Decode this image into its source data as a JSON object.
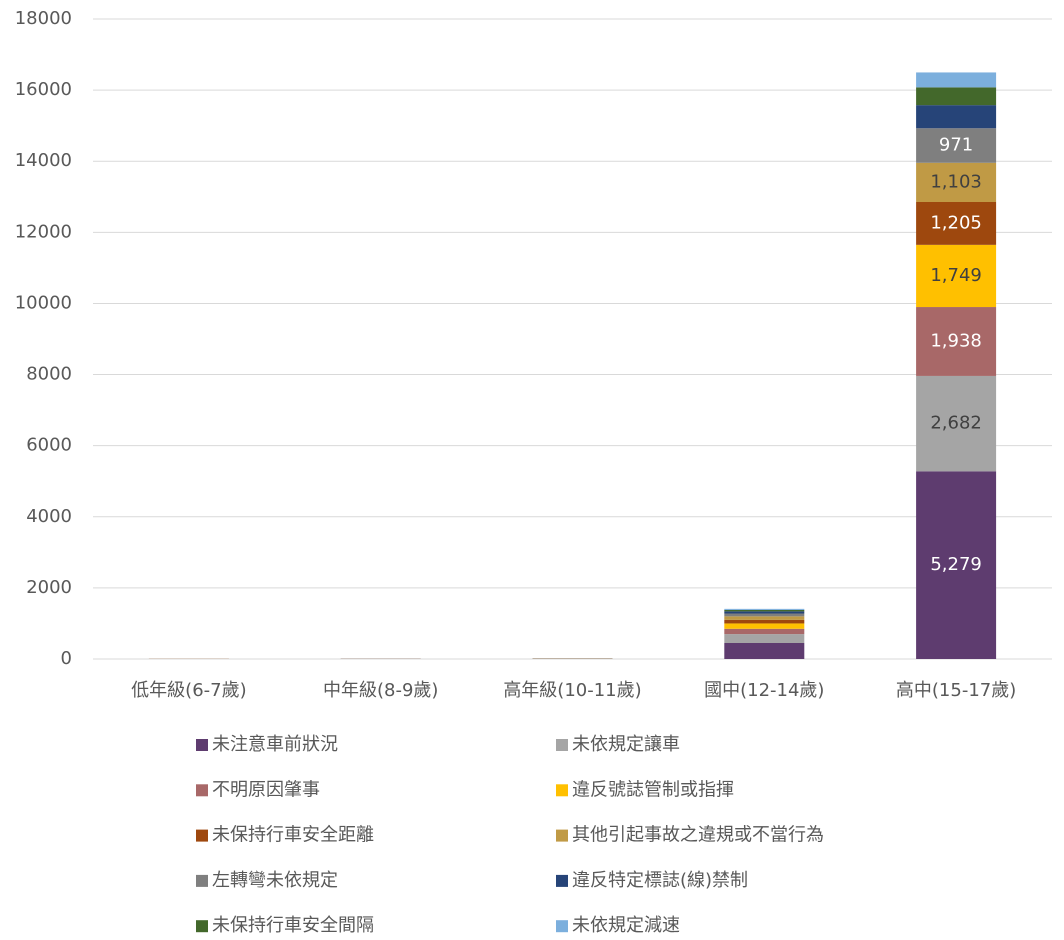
{
  "chart_data": {
    "type": "stacked_bar",
    "categories": [
      "低年級(6-7歲)",
      "中年級(8-9歲)",
      "高年級(10-11歲)",
      "國中(12-14歲)",
      "高中(15-17歲)"
    ],
    "series": [
      {
        "name": "未注意車前狀況",
        "color": "#5e3c6f",
        "values": [
          3,
          4,
          6,
          450,
          5279
        ],
        "value_labels": [
          null,
          null,
          null,
          null,
          "5,279"
        ]
      },
      {
        "name": "未依規定讓車",
        "color": "#a5a5a5",
        "values": [
          1,
          2,
          3,
          250,
          2682
        ],
        "value_labels": [
          null,
          null,
          null,
          null,
          "2,682"
        ]
      },
      {
        "name": "不明原因肇事",
        "color": "#a86868",
        "values": [
          1,
          1,
          2,
          150,
          1938
        ],
        "value_labels": [
          null,
          null,
          null,
          null,
          "1,938"
        ]
      },
      {
        "name": "違反號誌管制或指揮",
        "color": "#ffc000",
        "values": [
          1,
          1,
          2,
          150,
          1749
        ],
        "value_labels": [
          null,
          null,
          null,
          null,
          "1,749"
        ]
      },
      {
        "name": "未保持行車安全距離",
        "color": "#9e480e",
        "values": [
          1,
          1,
          1,
          100,
          1205
        ],
        "value_labels": [
          null,
          null,
          null,
          null,
          "1,205"
        ]
      },
      {
        "name": "其他引起事故之違規或不當行為",
        "color": "#c09a45",
        "values": [
          1,
          1,
          2,
          100,
          1103
        ],
        "value_labels": [
          null,
          null,
          null,
          null,
          "1,103"
        ]
      },
      {
        "name": "左轉彎未依規定",
        "color": "#7f7f7f",
        "values": [
          0,
          1,
          1,
          80,
          971
        ],
        "value_labels": [
          null,
          null,
          null,
          null,
          "971"
        ]
      },
      {
        "name": "違反特定標誌(線)禁制",
        "color": "#264478",
        "values": [
          0,
          1,
          1,
          60,
          650
        ]
      },
      {
        "name": "未保持行車安全間隔",
        "color": "#43682b",
        "values": [
          0,
          0,
          1,
          40,
          500
        ]
      },
      {
        "name": "未依規定減速",
        "color": "#7cafdd",
        "values": [
          0,
          0,
          1,
          30,
          420
        ]
      }
    ],
    "ylim": [
      0,
      18000
    ],
    "yticks": [
      0,
      2000,
      4000,
      6000,
      8000,
      10000,
      12000,
      14000,
      16000,
      18000
    ],
    "grid": true
  }
}
